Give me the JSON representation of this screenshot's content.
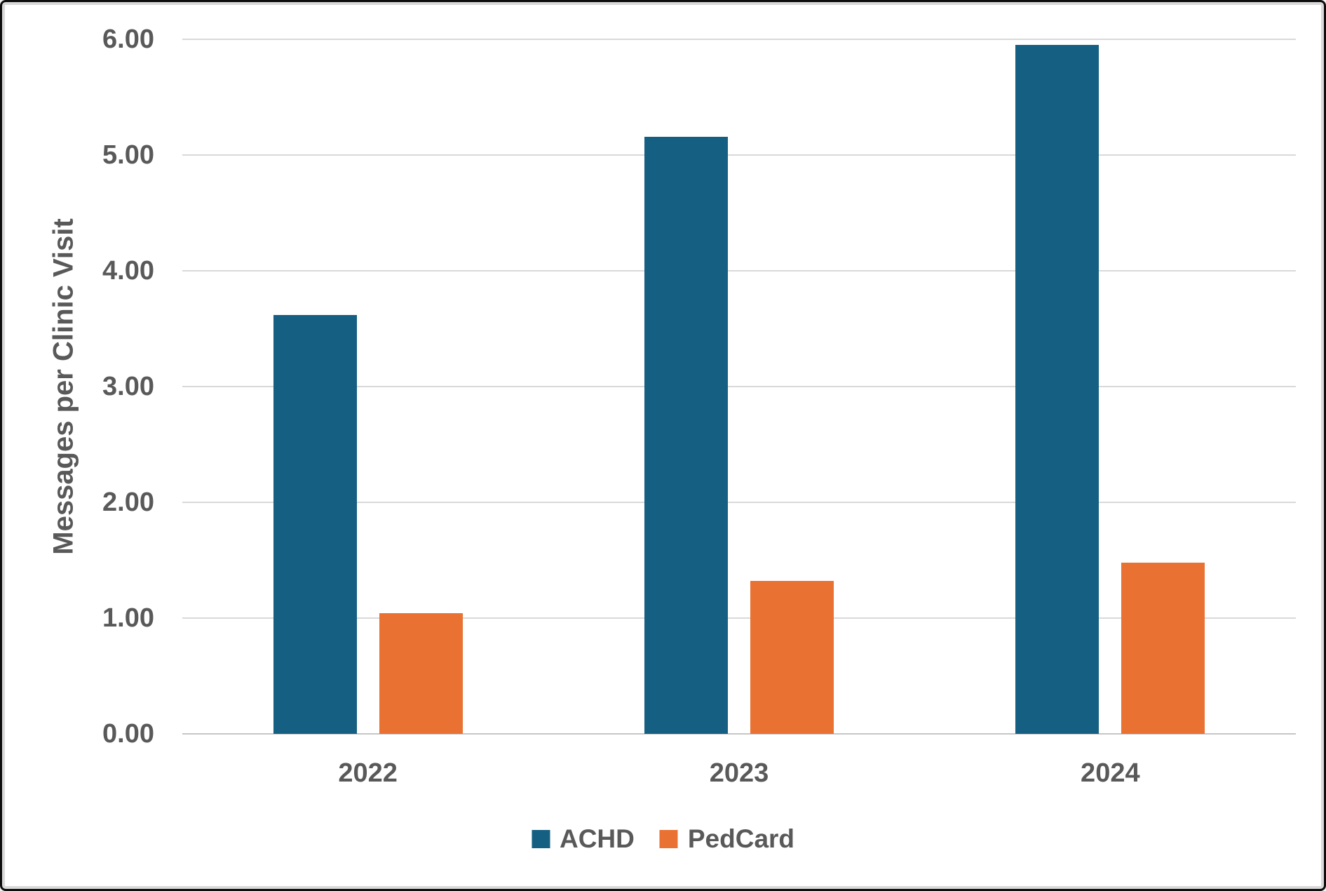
{
  "chart_data": {
    "type": "bar",
    "title": "",
    "categories": [
      "2022",
      "2023",
      "2024"
    ],
    "series": [
      {
        "name": "ACHD",
        "color": "#156082",
        "values": [
          3.62,
          5.16,
          5.95
        ]
      },
      {
        "name": "PedCard",
        "color": "#E97132",
        "values": [
          1.04,
          1.32,
          1.48
        ]
      }
    ],
    "xlabel": "",
    "ylabel": "Messages per Clinic Visit",
    "ylim": [
      0,
      6
    ],
    "ytick_labels": [
      "0.00",
      "1.00",
      "2.00",
      "3.00",
      "4.00",
      "5.00",
      "6.00"
    ],
    "grid": "horizontal",
    "legend_position": "bottom"
  },
  "colors": {
    "text": "#595959",
    "gridline": "#D9D9D9",
    "axis_line": "#C6C6C6",
    "background": "#FFFFFF",
    "frame_border": "#0D0D0D",
    "inner_border": "#D9D9D9"
  }
}
